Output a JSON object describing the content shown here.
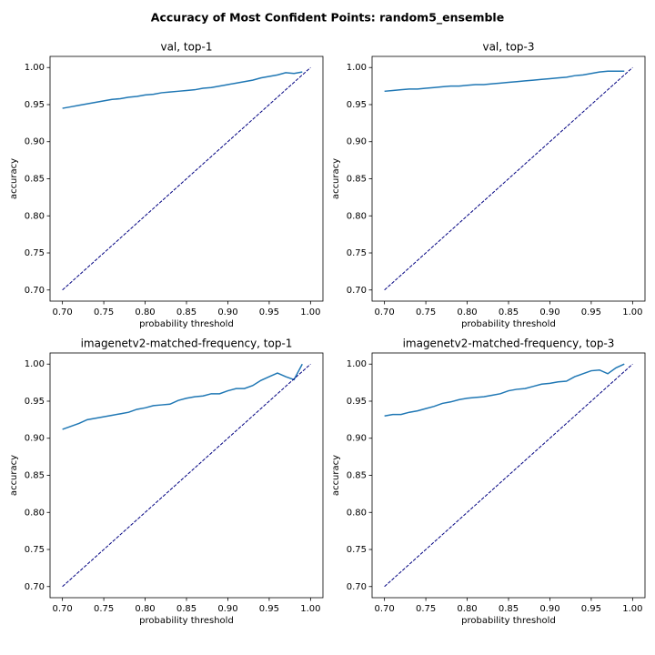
{
  "title": "Accuracy of Most Confident Points: random5_ensemble",
  "chart_data": [
    {
      "type": "line",
      "title": "val, top-1",
      "xlabel": "probability threshold",
      "ylabel": "accuracy",
      "xlim": [
        0.685,
        1.015
      ],
      "ylim": [
        0.685,
        1.015
      ],
      "xticks": [
        {
          "value": 0.7,
          "label": "0.70"
        },
        0.75,
        {
          "value": 0.8,
          "label": "0.80"
        },
        0.85,
        {
          "value": 0.9,
          "label": "0.90"
        },
        0.95,
        {
          "value": 1.0,
          "label": "1.00"
        }
      ],
      "yticks": [
        {
          "value": 0.7,
          "label": "0.70"
        },
        0.75,
        {
          "value": 0.8,
          "label": "0.80"
        },
        0.85,
        {
          "value": 0.9,
          "label": "0.90"
        },
        0.95,
        {
          "value": 1.0,
          "label": "1.00"
        }
      ],
      "series": [
        {
          "color": "#1f77b4",
          "x": [
            0.7,
            0.71,
            0.72,
            0.73,
            0.74,
            0.75,
            0.76,
            0.77,
            0.78,
            0.79,
            0.8,
            0.81,
            0.82,
            0.83,
            0.84,
            0.85,
            0.86,
            0.87,
            0.88,
            0.89,
            0.9,
            0.91,
            0.92,
            0.93,
            0.94,
            0.95,
            0.96,
            0.97,
            0.98,
            0.99
          ],
          "values": [
            0.945,
            0.947,
            0.949,
            0.951,
            0.953,
            0.955,
            0.957,
            0.958,
            0.96,
            0.961,
            0.963,
            0.964,
            0.966,
            0.967,
            0.968,
            0.969,
            0.97,
            0.972,
            0.973,
            0.975,
            0.977,
            0.979,
            0.981,
            0.983,
            0.986,
            0.988,
            0.99,
            0.993,
            0.992,
            0.994
          ]
        },
        {
          "color": "navy",
          "dashed": true,
          "x": [
            0.7,
            1.0
          ],
          "values": [
            0.7,
            1.0
          ]
        }
      ]
    },
    {
      "type": "line",
      "title": "val, top-3",
      "xlabel": "probability threshold",
      "ylabel": "accuracy",
      "xlim": [
        0.685,
        1.015
      ],
      "ylim": [
        0.685,
        1.015
      ],
      "xticks": [
        {
          "value": 0.7,
          "label": "0.70"
        },
        0.75,
        {
          "value": 0.8,
          "label": "0.80"
        },
        0.85,
        {
          "value": 0.9,
          "label": "0.90"
        },
        0.95,
        {
          "value": 1.0,
          "label": "1.00"
        }
      ],
      "yticks": [
        {
          "value": 0.7,
          "label": "0.70"
        },
        0.75,
        {
          "value": 0.8,
          "label": "0.80"
        },
        0.85,
        {
          "value": 0.9,
          "label": "0.90"
        },
        0.95,
        {
          "value": 1.0,
          "label": "1.00"
        }
      ],
      "series": [
        {
          "color": "#1f77b4",
          "x": [
            0.7,
            0.71,
            0.72,
            0.73,
            0.74,
            0.75,
            0.76,
            0.77,
            0.78,
            0.79,
            0.8,
            0.81,
            0.82,
            0.83,
            0.84,
            0.85,
            0.86,
            0.87,
            0.88,
            0.89,
            0.9,
            0.91,
            0.92,
            0.93,
            0.94,
            0.95,
            0.96,
            0.97,
            0.98,
            0.99
          ],
          "values": [
            0.968,
            0.969,
            0.97,
            0.971,
            0.971,
            0.972,
            0.973,
            0.974,
            0.975,
            0.975,
            0.976,
            0.977,
            0.977,
            0.978,
            0.979,
            0.98,
            0.981,
            0.982,
            0.983,
            0.984,
            0.985,
            0.986,
            0.987,
            0.989,
            0.99,
            0.992,
            0.994,
            0.995,
            0.995,
            0.995
          ]
        },
        {
          "color": "navy",
          "dashed": true,
          "x": [
            0.7,
            1.0
          ],
          "values": [
            0.7,
            1.0
          ]
        }
      ]
    },
    {
      "type": "line",
      "title": "imagenetv2-matched-frequency, top-1",
      "xlabel": "probability threshold",
      "ylabel": "accuracy",
      "xlim": [
        0.685,
        1.015
      ],
      "ylim": [
        0.685,
        1.015
      ],
      "xticks": [
        {
          "value": 0.7,
          "label": "0.70"
        },
        0.75,
        {
          "value": 0.8,
          "label": "0.80"
        },
        0.85,
        {
          "value": 0.9,
          "label": "0.90"
        },
        0.95,
        {
          "value": 1.0,
          "label": "1.00"
        }
      ],
      "yticks": [
        {
          "value": 0.7,
          "label": "0.70"
        },
        0.75,
        {
          "value": 0.8,
          "label": "0.80"
        },
        0.85,
        {
          "value": 0.9,
          "label": "0.90"
        },
        0.95,
        {
          "value": 1.0,
          "label": "1.00"
        }
      ],
      "series": [
        {
          "color": "#1f77b4",
          "x": [
            0.7,
            0.71,
            0.72,
            0.73,
            0.74,
            0.75,
            0.76,
            0.77,
            0.78,
            0.79,
            0.8,
            0.81,
            0.82,
            0.83,
            0.84,
            0.85,
            0.86,
            0.87,
            0.88,
            0.89,
            0.9,
            0.91,
            0.92,
            0.93,
            0.94,
            0.95,
            0.96,
            0.97,
            0.98,
            0.99
          ],
          "values": [
            0.912,
            0.916,
            0.92,
            0.925,
            0.927,
            0.929,
            0.931,
            0.933,
            0.935,
            0.939,
            0.941,
            0.944,
            0.945,
            0.946,
            0.951,
            0.954,
            0.956,
            0.957,
            0.96,
            0.96,
            0.964,
            0.967,
            0.967,
            0.971,
            0.978,
            0.983,
            0.988,
            0.983,
            0.979,
            1.0
          ]
        },
        {
          "color": "navy",
          "dashed": true,
          "x": [
            0.7,
            1.0
          ],
          "values": [
            0.7,
            1.0
          ]
        }
      ]
    },
    {
      "type": "line",
      "title": "imagenetv2-matched-frequency, top-3",
      "xlabel": "probability threshold",
      "ylabel": "accuracy",
      "xlim": [
        0.685,
        1.015
      ],
      "ylim": [
        0.685,
        1.015
      ],
      "xticks": [
        {
          "value": 0.7,
          "label": "0.70"
        },
        0.75,
        {
          "value": 0.8,
          "label": "0.80"
        },
        0.85,
        {
          "value": 0.9,
          "label": "0.90"
        },
        0.95,
        {
          "value": 1.0,
          "label": "1.00"
        }
      ],
      "yticks": [
        {
          "value": 0.7,
          "label": "0.70"
        },
        0.75,
        {
          "value": 0.8,
          "label": "0.80"
        },
        0.85,
        {
          "value": 0.9,
          "label": "0.90"
        },
        0.95,
        {
          "value": 1.0,
          "label": "1.00"
        }
      ],
      "series": [
        {
          "color": "#1f77b4",
          "x": [
            0.7,
            0.71,
            0.72,
            0.73,
            0.74,
            0.75,
            0.76,
            0.77,
            0.78,
            0.79,
            0.8,
            0.81,
            0.82,
            0.83,
            0.84,
            0.85,
            0.86,
            0.87,
            0.88,
            0.89,
            0.9,
            0.91,
            0.92,
            0.93,
            0.94,
            0.95,
            0.96,
            0.97,
            0.98,
            0.99
          ],
          "values": [
            0.93,
            0.932,
            0.932,
            0.935,
            0.937,
            0.94,
            0.943,
            0.947,
            0.949,
            0.952,
            0.954,
            0.955,
            0.956,
            0.958,
            0.96,
            0.964,
            0.966,
            0.967,
            0.97,
            0.973,
            0.974,
            0.976,
            0.977,
            0.983,
            0.987,
            0.991,
            0.992,
            0.987,
            0.995,
            1.0
          ]
        },
        {
          "color": "navy",
          "dashed": true,
          "x": [
            0.7,
            1.0
          ],
          "values": [
            0.7,
            1.0
          ]
        }
      ]
    }
  ]
}
